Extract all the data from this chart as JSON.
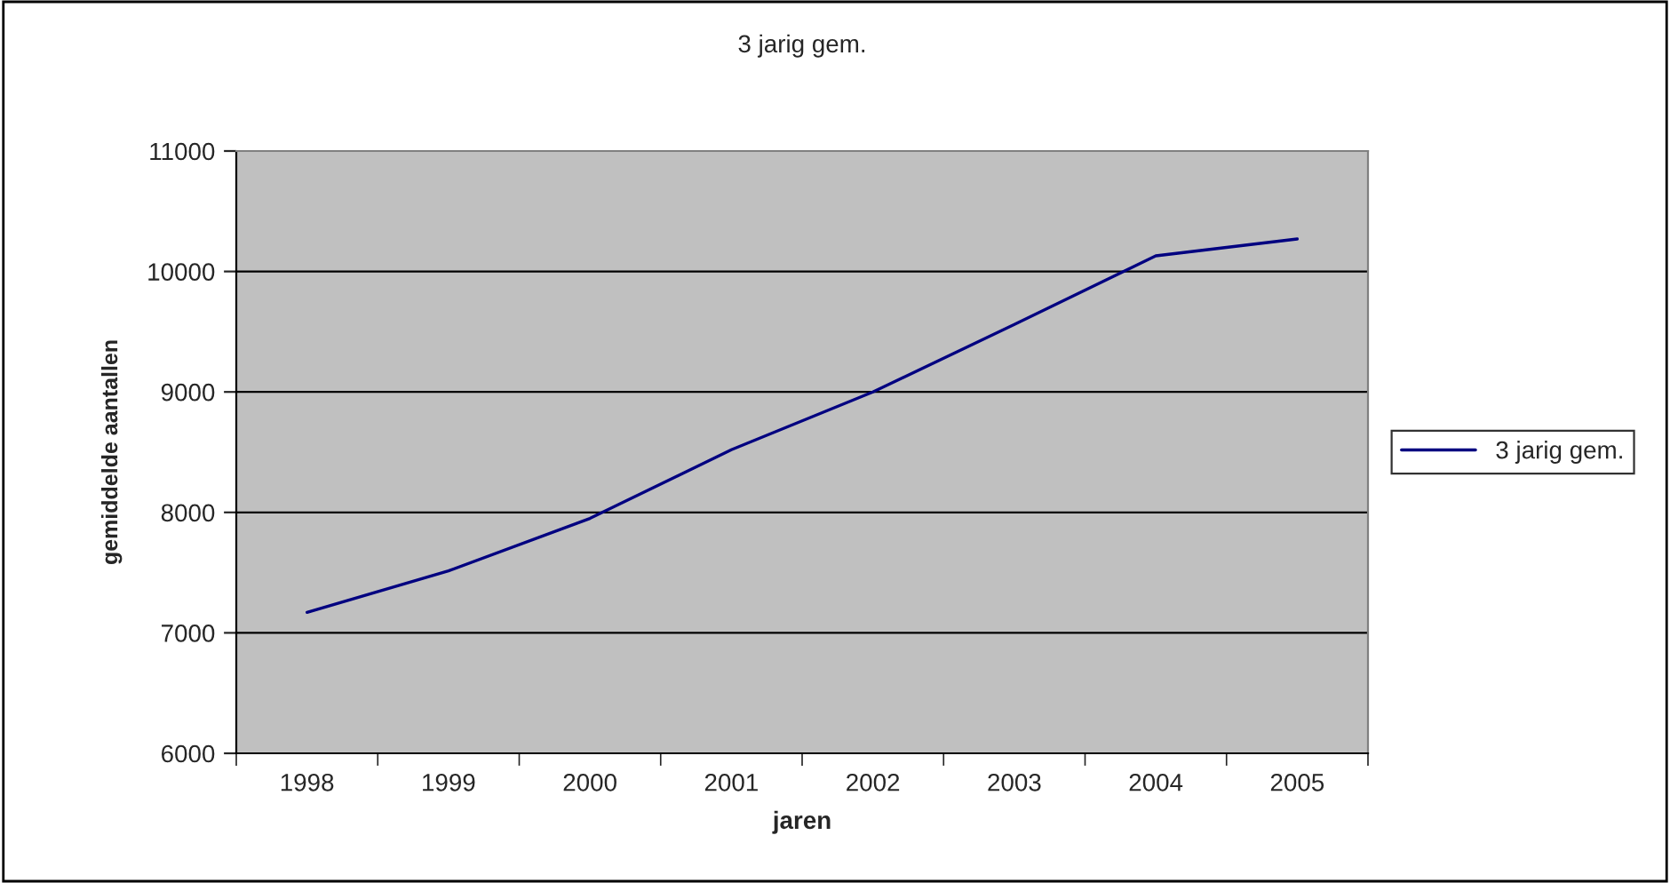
{
  "chart_data": {
    "type": "line",
    "title": "3 jarig gem.",
    "xlabel": "jaren",
    "ylabel": "gemiddelde aantallen",
    "categories": [
      "1998",
      "1999",
      "2000",
      "2001",
      "2002",
      "2003",
      "2004",
      "2005"
    ],
    "series": [
      {
        "name": "3 jarig gem.",
        "color": "#000080",
        "values": [
          7170,
          7515,
          7950,
          8520,
          9000,
          9560,
          10130,
          10270
        ]
      }
    ],
    "ylim": [
      6000,
      11000
    ],
    "yticks": [
      6000,
      7000,
      8000,
      9000,
      10000,
      11000
    ],
    "grid": "y",
    "legend": "right",
    "marker": "none",
    "line_style": "solid"
  }
}
